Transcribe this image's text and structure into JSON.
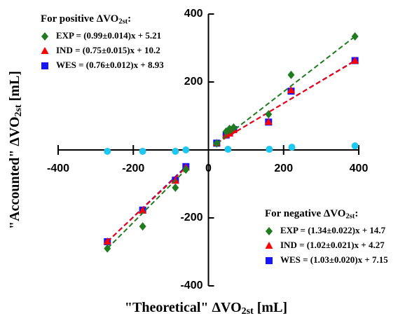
{
  "chart_data": {
    "type": "scatter",
    "x_label": [
      "\"Theoretical\" ΔVO",
      "2st",
      " [mL]"
    ],
    "y_label": [
      "\"Accounted\" ΔVO",
      "2st",
      "  [mL]"
    ],
    "xlim": [
      -400,
      400
    ],
    "ylim": [
      -400,
      400
    ],
    "xticks": [
      -400,
      -200,
      0,
      200,
      400
    ],
    "yticks": [
      -400,
      -200,
      200,
      400
    ],
    "legends": [
      {
        "title": [
          "For positive ΔVO",
          "2st",
          ":"
        ],
        "series": [
          {
            "name": "EXP = (0.99±0.014)x + 5.21",
            "color": "#1e7b1e",
            "marker": "diamond",
            "x": [
              22,
              47,
              56,
              67,
              160,
              220,
              390
            ],
            "values": [
              19,
              54,
              62,
              66,
              105,
              221,
              334
            ]
          },
          {
            "name": "IND = (0.75±0.015)x + 10.2",
            "color": "#ff0000",
            "marker": "triangle",
            "x": [
              22,
              47,
              56,
              67,
              160,
              220,
              390
            ],
            "values": [
              20,
              44,
              48,
              58,
              82,
              175,
              262
            ]
          },
          {
            "name": "WES = (0.76±0.012)x + 8.93",
            "color": "#1515ff",
            "marker": "square",
            "x": [
              22,
              47,
              56,
              67,
              160,
              220,
              390
            ],
            "values": [
              20,
              44,
              50,
              60,
              82,
              173,
              263
            ]
          }
        ]
      },
      {
        "title": [
          "For negative ΔVO",
          "2st",
          ":"
        ],
        "series": [
          {
            "name": "EXP = (1.34±0.022)x + 14.7",
            "color": "#1e7b1e",
            "marker": "diamond",
            "x": [
              -269,
              -175,
              -88,
              -60
            ],
            "values": [
              -290,
              -225,
              -111,
              -58
            ]
          },
          {
            "name": "IND = (1.02±0.021)x + 4.27",
            "color": "#ff0000",
            "marker": "triangle",
            "x": [
              -269,
              -175,
              -88,
              -60
            ],
            "values": [
              -270,
              -179,
              -91,
              -52
            ]
          },
          {
            "name": "WES = (1.03±0.020)x + 7.15",
            "color": "#1515ff",
            "marker": "square",
            "x": [
              -269,
              -175,
              -88,
              -60
            ],
            "values": [
              -270,
              -177,
              -89,
              -49
            ]
          }
        ]
      }
    ],
    "series": [
      {
        "color": "#1ec8f0",
        "marker": "circle",
        "x": [
          -269,
          -175,
          -88,
          -60,
          52,
          162,
          222,
          390
        ],
        "values": [
          -4,
          -4,
          -4,
          0,
          2,
          2,
          8,
          12
        ]
      }
    ]
  }
}
